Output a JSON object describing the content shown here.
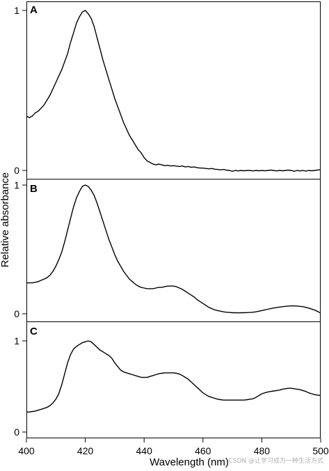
{
  "chart_data": [
    {
      "type": "line",
      "panel": "A",
      "x": [
        400,
        401,
        402,
        403,
        404,
        405,
        406,
        407,
        408,
        409,
        410,
        411,
        412,
        413,
        414,
        415,
        416,
        417,
        418,
        419,
        420,
        421,
        422,
        423,
        424,
        425,
        426,
        427,
        428,
        429,
        430,
        431,
        432,
        433,
        434,
        435,
        436,
        437,
        438,
        439,
        440,
        441,
        442,
        443,
        444,
        445,
        446,
        447,
        448,
        449,
        450,
        451,
        452,
        453,
        454,
        455,
        456,
        457,
        458,
        459,
        460,
        461,
        462,
        463,
        464,
        465,
        466,
        467,
        468,
        469,
        470,
        471,
        472,
        473,
        474,
        475,
        476,
        477,
        478,
        479,
        480,
        481,
        482,
        483,
        484,
        485,
        486,
        487,
        488,
        489,
        490,
        491,
        492,
        493,
        494,
        495,
        496,
        497,
        498,
        499,
        500
      ],
      "values": [
        0.34,
        0.33,
        0.34,
        0.36,
        0.37,
        0.39,
        0.41,
        0.44,
        0.47,
        0.51,
        0.55,
        0.59,
        0.63,
        0.68,
        0.73,
        0.8,
        0.86,
        0.92,
        0.96,
        0.99,
        1.0,
        0.98,
        0.95,
        0.9,
        0.83,
        0.76,
        0.69,
        0.63,
        0.57,
        0.51,
        0.45,
        0.4,
        0.35,
        0.3,
        0.26,
        0.22,
        0.19,
        0.16,
        0.13,
        0.11,
        0.08,
        0.06,
        0.05,
        0.04,
        0.035,
        0.04,
        0.035,
        0.03,
        0.032,
        0.028,
        0.03,
        0.027,
        0.025,
        0.028,
        0.022,
        0.025,
        0.02,
        0.022,
        0.018,
        0.015,
        0.015,
        0.012,
        0.01,
        0.012,
        0.008,
        0.006,
        0.004,
        0.006,
        0.002,
        0.0,
        -0.005,
        0.0,
        -0.003,
        0.0,
        -0.002,
        0.0,
        0.0,
        -0.003,
        0.0,
        -0.002,
        0.0,
        -0.002,
        0.0,
        0.002,
        0.0,
        -0.003,
        0.0,
        -0.002,
        0.0,
        0.002,
        0.0,
        -0.005,
        0.0,
        -0.003,
        0.0,
        -0.004,
        0.0,
        -0.002,
        0.0,
        0.003,
        0.005
      ],
      "ylim": [
        0,
        1
      ],
      "yticks": [
        0,
        1
      ]
    },
    {
      "type": "line",
      "panel": "B",
      "x": [
        400,
        401,
        402,
        403,
        404,
        405,
        406,
        407,
        408,
        409,
        410,
        411,
        412,
        413,
        414,
        415,
        416,
        417,
        418,
        419,
        420,
        421,
        422,
        423,
        424,
        425,
        426,
        427,
        428,
        429,
        430,
        431,
        432,
        433,
        434,
        435,
        436,
        437,
        438,
        439,
        440,
        441,
        442,
        443,
        444,
        445,
        446,
        447,
        448,
        449,
        450,
        451,
        452,
        453,
        454,
        455,
        456,
        457,
        458,
        459,
        460,
        461,
        462,
        463,
        464,
        465,
        466,
        467,
        468,
        469,
        470,
        471,
        472,
        473,
        474,
        475,
        476,
        477,
        478,
        479,
        480,
        481,
        482,
        483,
        484,
        485,
        486,
        487,
        488,
        489,
        490,
        491,
        492,
        493,
        494,
        495,
        496,
        497,
        498,
        499,
        500
      ],
      "values": [
        0.24,
        0.24,
        0.24,
        0.245,
        0.25,
        0.26,
        0.27,
        0.28,
        0.3,
        0.33,
        0.37,
        0.42,
        0.48,
        0.56,
        0.65,
        0.74,
        0.83,
        0.9,
        0.95,
        0.99,
        1.0,
        0.99,
        0.96,
        0.92,
        0.86,
        0.79,
        0.72,
        0.65,
        0.58,
        0.52,
        0.46,
        0.41,
        0.37,
        0.33,
        0.3,
        0.27,
        0.25,
        0.23,
        0.215,
        0.205,
        0.2,
        0.195,
        0.195,
        0.195,
        0.2,
        0.205,
        0.205,
        0.21,
        0.215,
        0.215,
        0.215,
        0.21,
        0.2,
        0.19,
        0.175,
        0.16,
        0.145,
        0.13,
        0.11,
        0.095,
        0.08,
        0.065,
        0.05,
        0.04,
        0.03,
        0.025,
        0.02,
        0.015,
        0.012,
        0.01,
        0.008,
        0.008,
        0.007,
        0.008,
        0.008,
        0.009,
        0.01,
        0.012,
        0.015,
        0.02,
        0.025,
        0.03,
        0.035,
        0.04,
        0.045,
        0.048,
        0.052,
        0.055,
        0.058,
        0.06,
        0.061,
        0.061,
        0.06,
        0.058,
        0.055,
        0.05,
        0.044,
        0.036,
        0.028,
        0.018,
        0.005
      ],
      "ylim": [
        0,
        1
      ],
      "yticks": [
        0,
        1
      ]
    },
    {
      "type": "line",
      "panel": "C",
      "x": [
        400,
        401,
        402,
        403,
        404,
        405,
        406,
        407,
        408,
        409,
        410,
        411,
        412,
        413,
        414,
        415,
        416,
        417,
        418,
        419,
        420,
        421,
        422,
        423,
        424,
        425,
        426,
        427,
        428,
        429,
        430,
        431,
        432,
        433,
        434,
        435,
        436,
        437,
        438,
        439,
        440,
        441,
        442,
        443,
        444,
        445,
        446,
        447,
        448,
        449,
        450,
        451,
        452,
        453,
        454,
        455,
        456,
        457,
        458,
        459,
        460,
        461,
        462,
        463,
        464,
        465,
        466,
        467,
        468,
        469,
        470,
        471,
        472,
        473,
        474,
        475,
        476,
        477,
        478,
        479,
        480,
        481,
        482,
        483,
        484,
        485,
        486,
        487,
        488,
        489,
        490,
        491,
        492,
        493,
        494,
        495,
        496,
        497,
        498,
        499,
        500
      ],
      "values": [
        0.22,
        0.22,
        0.225,
        0.23,
        0.24,
        0.25,
        0.26,
        0.27,
        0.29,
        0.32,
        0.36,
        0.42,
        0.52,
        0.64,
        0.76,
        0.85,
        0.91,
        0.94,
        0.96,
        0.98,
        0.99,
        1.0,
        0.99,
        0.96,
        0.93,
        0.9,
        0.88,
        0.86,
        0.84,
        0.81,
        0.76,
        0.72,
        0.68,
        0.66,
        0.65,
        0.64,
        0.63,
        0.62,
        0.61,
        0.6,
        0.6,
        0.6,
        0.61,
        0.62,
        0.63,
        0.64,
        0.645,
        0.65,
        0.65,
        0.65,
        0.65,
        0.645,
        0.635,
        0.62,
        0.6,
        0.58,
        0.55,
        0.52,
        0.49,
        0.46,
        0.43,
        0.41,
        0.39,
        0.38,
        0.37,
        0.36,
        0.355,
        0.35,
        0.35,
        0.35,
        0.35,
        0.35,
        0.35,
        0.35,
        0.35,
        0.355,
        0.36,
        0.365,
        0.38,
        0.4,
        0.42,
        0.43,
        0.44,
        0.445,
        0.45,
        0.455,
        0.46,
        0.47,
        0.475,
        0.48,
        0.48,
        0.475,
        0.47,
        0.465,
        0.455,
        0.445,
        0.43,
        0.42,
        0.41,
        0.405,
        0.4
      ],
      "ylim": [
        0,
        1
      ],
      "yticks": [
        0,
        1
      ]
    }
  ],
  "panels": {
    "a": {
      "letter": "A",
      "tick_0": "0",
      "tick_1": "1"
    },
    "b": {
      "letter": "B",
      "tick_0": "0",
      "tick_1": "1"
    },
    "c": {
      "letter": "C",
      "tick_0": "0",
      "tick_1": "1"
    }
  },
  "axes": {
    "xlabel": "Wavelength (nm)",
    "ylabel": "Relative absorbance",
    "xlim": [
      400,
      500
    ],
    "xticks": [
      "400",
      "420",
      "440",
      "460",
      "480",
      "500"
    ]
  },
  "watermark": "CSDN @让学习成为一种生活方式",
  "colors": {
    "line": "#000000",
    "frame": "#000000",
    "background": "#ffffff"
  }
}
